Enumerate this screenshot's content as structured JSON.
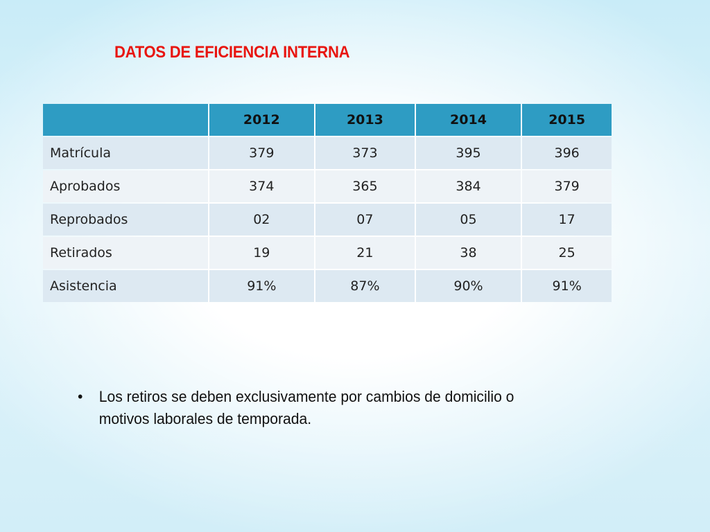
{
  "slide": {
    "title": "DATOS DE EFICIENCIA INTERNA"
  },
  "table": {
    "header": [
      "",
      "2012",
      "2013",
      "2014",
      "2015"
    ],
    "rows": [
      {
        "label": "Matrícula",
        "values": [
          "379",
          "373",
          "395",
          "396"
        ]
      },
      {
        "label": "Aprobados",
        "values": [
          "374",
          "365",
          "384",
          "379"
        ]
      },
      {
        "label": "Reprobados",
        "values": [
          "02",
          "07",
          "05",
          "17"
        ]
      },
      {
        "label": "Retirados",
        "values": [
          "19",
          "21",
          "38",
          "25"
        ]
      },
      {
        "label": "Asistencia",
        "values": [
          "91%",
          "87%",
          "90%",
          "91%"
        ]
      }
    ]
  },
  "note": {
    "bullet": "•",
    "text": "Los retiros se deben exclusivamente por cambios de domicilio o motivos laborales de temporada."
  },
  "colors": {
    "title": "#e8150f",
    "header_fill": "#2e9cc3",
    "row_fill_light": "#dde9f2",
    "row_fill_lighter": "#eef3f7",
    "background": "#c9ecf8"
  }
}
